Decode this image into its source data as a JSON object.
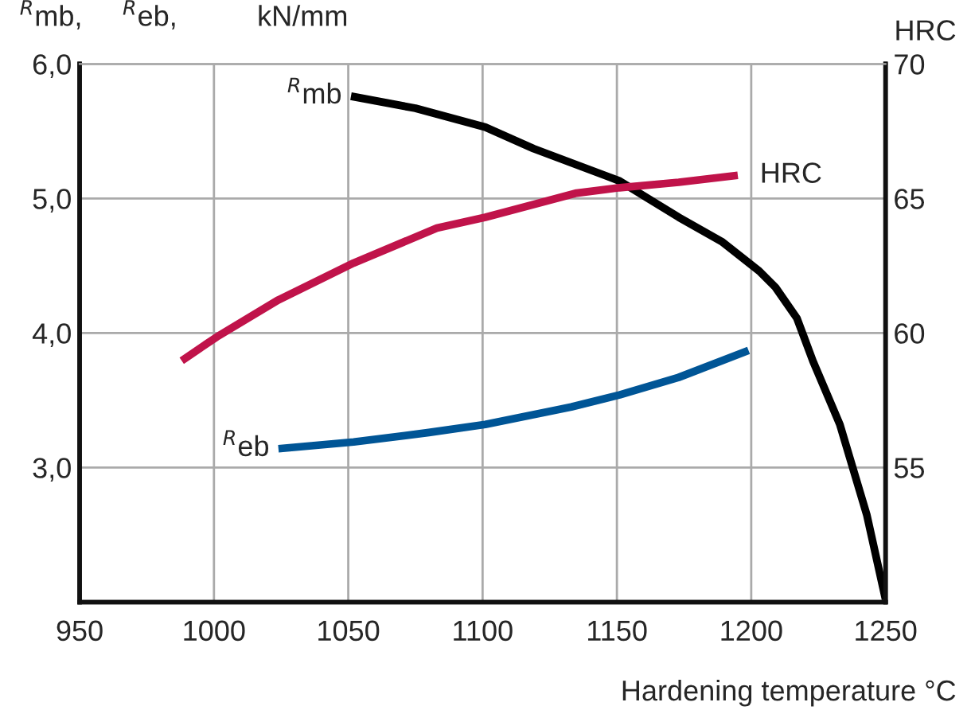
{
  "chart_data": {
    "type": "line",
    "ylabel": "$^{R}$mb,     $^{R}$eb,          kN/mm",
    "y2label": "HRC",
    "xlabel": "Hardening temperature °C",
    "xlim": [
      950,
      1250
    ],
    "xticks": [
      950,
      1000,
      1050,
      1100,
      1150,
      1200,
      1250
    ],
    "ylim": [
      2.0,
      6.0
    ],
    "yticks": [
      {
        "value": 2.0,
        "label": null
      },
      {
        "value": 3.0,
        "label": "3,0"
      },
      {
        "value": 4.0,
        "label": "4,0"
      },
      {
        "value": 5.0,
        "label": "5,0"
      },
      {
        "value": 6.0,
        "label": "6,0"
      }
    ],
    "y2lim": [
      50,
      70
    ],
    "y2ticks": [
      {
        "value": 50,
        "label": null
      },
      55,
      60,
      65,
      70
    ],
    "grid": true,
    "line_style": "solid",
    "marker": "none",
    "series": [
      {
        "name": "$^{R}$mb",
        "color": "#000000",
        "x": [
          1051,
          1075,
          1101,
          1119,
          1151,
          1173,
          1189,
          1203,
          1209,
          1217,
          1223,
          1233,
          1243,
          1250
        ],
        "values": [
          5.76,
          5.67,
          5.53,
          5.37,
          5.13,
          4.86,
          4.68,
          4.46,
          4.34,
          4.11,
          3.79,
          3.32,
          2.65,
          2.02
        ]
      },
      {
        "name": "HRC",
        "color": "#c0134a",
        "axis": "y2",
        "x": [
          988,
          1001,
          1024,
          1052,
          1083,
          1101,
          1135,
          1151,
          1173,
          1195
        ],
        "values": [
          58.97,
          59.85,
          61.23,
          62.6,
          63.9,
          64.3,
          65.2,
          65.4,
          65.6,
          65.86
        ]
      },
      {
        "name": "$^{R}$eb",
        "color": "#005596",
        "x": [
          1024,
          1052,
          1080,
          1101,
          1133,
          1151,
          1173,
          1199
        ],
        "values": [
          3.14,
          3.19,
          3.26,
          3.32,
          3.45,
          3.54,
          3.67,
          3.87
        ]
      }
    ]
  }
}
